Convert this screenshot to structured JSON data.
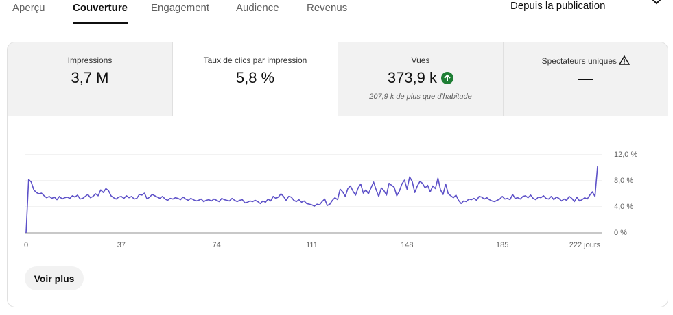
{
  "tabs": [
    "Aperçu",
    "Couverture",
    "Engagement",
    "Audience",
    "Revenus"
  ],
  "selected_tab": 1,
  "period": "Depuis la publication",
  "metrics": [
    {
      "label": "Impressions",
      "value": "3,7 M"
    },
    {
      "label": "Taux de clics par impression",
      "value": "5,8 %"
    },
    {
      "label": "Vues",
      "value": "373,9 k",
      "note": "207,9 k de plus que d'habitude"
    },
    {
      "label": "Spectateurs uniques",
      "value": "—"
    }
  ],
  "chart_data": {
    "type": "line",
    "color": "#5d51c8",
    "grid": true,
    "xlim": [
      0,
      222
    ],
    "ylim": [
      0,
      12
    ],
    "xticks": [
      0,
      37,
      74,
      111,
      148,
      185,
      {
        "value": 222,
        "label": "222 jours"
      }
    ],
    "yticks": [
      {
        "value": 0,
        "label": "0 %"
      },
      {
        "value": 4,
        "label": "4,0 %"
      },
      {
        "value": 8,
        "label": "8,0 %"
      },
      {
        "value": 12,
        "label": "12,0 %"
      }
    ],
    "values": [
      0,
      8.2,
      7.8,
      6.6,
      6.2,
      6.0,
      6.1,
      5.7,
      5.4,
      5.6,
      5.3,
      5.5,
      5.1,
      5.6,
      5.2,
      5.4,
      5.5,
      5.3,
      5.7,
      5.5,
      5.8,
      5.2,
      5.3,
      5.6,
      5.9,
      5.4,
      5.6,
      6.0,
      5.7,
      6.6,
      6.2,
      6.8,
      6.5,
      5.7,
      5.4,
      5.2,
      5.5,
      5.6,
      5.3,
      5.7,
      5.4,
      5.6,
      5.2,
      5.3,
      5.9,
      5.8,
      6.1,
      5.2,
      5.5,
      5.9,
      5.7,
      5.5,
      5.3,
      5.6,
      5.2,
      5.0,
      5.3,
      5.2,
      5.4,
      5.3,
      5.1,
      5.5,
      5.2,
      5.0,
      5.3,
      5.1,
      4.9,
      5.0,
      5.2,
      4.8,
      5.0,
      5.1,
      4.9,
      5.2,
      5.0,
      4.8,
      5.3,
      5.1,
      5.0,
      4.9,
      5.3,
      5.0,
      4.8,
      5.0,
      5.1,
      4.6,
      4.7,
      4.9,
      4.8,
      5.0,
      4.8,
      4.5,
      4.9,
      4.7,
      5.2,
      4.9,
      5.6,
      5.3,
      5.5,
      6.0,
      5.6,
      5.0,
      5.6,
      5.5,
      5.0,
      4.8,
      5.1,
      4.7,
      4.9,
      4.5,
      4.4,
      4.3,
      4.1,
      4.4,
      4.3,
      4.8,
      5.2,
      4.2,
      4.4,
      5.0,
      5.4,
      5.1,
      6.7,
      6.3,
      5.6,
      6.8,
      7.2,
      6.4,
      5.8,
      6.9,
      7.5,
      6.1,
      6.6,
      6.0,
      6.9,
      7.8,
      6.6,
      5.6,
      6.9,
      6.5,
      5.8,
      7.6,
      7.3,
      7.0,
      5.7,
      6.4,
      7.5,
      8.1,
      6.7,
      8.6,
      7.9,
      6.2,
      7.2,
      7.9,
      7.6,
      6.9,
      7.3,
      6.3,
      7.2,
      6.8,
      8.4,
      6.6,
      5.9,
      7.5,
      6.0,
      5.7,
      5.4,
      5.8,
      5.0,
      4.5,
      4.9,
      4.8,
      5.2,
      5.1,
      5.3,
      5.0,
      5.6,
      5.5,
      5.2,
      5.4,
      5.1,
      4.9,
      4.8,
      5.0,
      5.2,
      5.6,
      5.2,
      5.3,
      5.1,
      5.9,
      5.3,
      5.4,
      5.2,
      5.6,
      5.7,
      5.4,
      5.8,
      5.3,
      5.1,
      5.5,
      5.4,
      5.7,
      5.3,
      5.2,
      5.6,
      5.1,
      5.5,
      5.3,
      4.9,
      5.2,
      5.0,
      5.6,
      5.3,
      4.8,
      5.5,
      4.9,
      5.1,
      5.4,
      5.2,
      5.8,
      6.3,
      5.6,
      10.2
    ]
  },
  "button": "Voir plus"
}
